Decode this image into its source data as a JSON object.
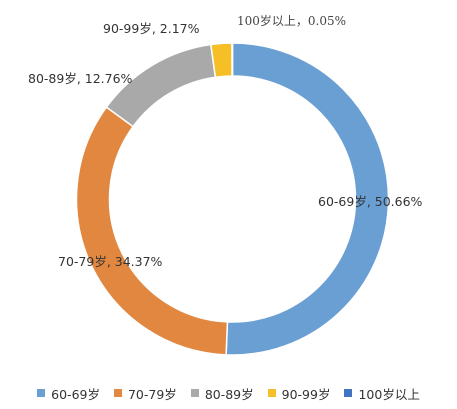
{
  "chart_data": {
    "type": "pie",
    "style": "donut",
    "categories": [
      "60-69岁",
      "70-79岁",
      "80-89岁",
      "90-99岁",
      "100岁以上"
    ],
    "values": [
      50.66,
      34.37,
      12.76,
      2.17,
      0.05
    ],
    "unit": "%",
    "colors": [
      "#6a9fd3",
      "#e1873f",
      "#a9a9a9",
      "#f6be27",
      "#4473c4"
    ],
    "data_labels": [
      "60-69岁, 50.66%",
      "70-79岁, 34.37%",
      "80-89岁, 12.76%",
      "90-99岁, 2.17%",
      "100岁以上，0.05%"
    ],
    "legend_position": "bottom"
  }
}
